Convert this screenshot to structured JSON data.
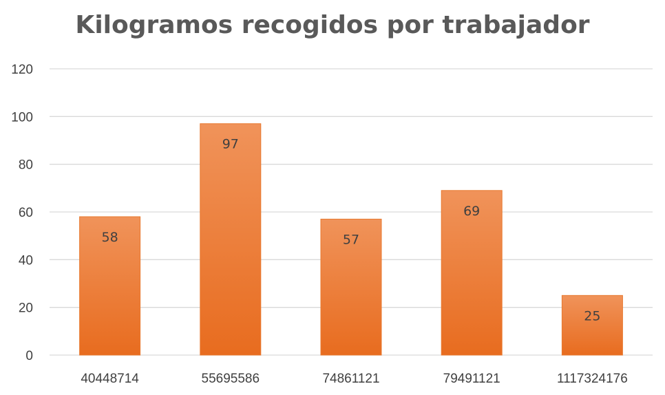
{
  "chart_data": {
    "type": "bar",
    "title": "Kilogramos recogidos por trabajador",
    "xlabel": "",
    "ylabel": "",
    "categories": [
      "40448714",
      "55695586",
      "74861121",
      "79491121",
      "1117324176"
    ],
    "values": [
      58,
      97,
      57,
      69,
      25
    ],
    "ylim": [
      0,
      120
    ],
    "yticks": [
      0,
      20,
      40,
      60,
      80,
      100,
      120
    ],
    "grid": true,
    "legend": "none",
    "data_labels": true,
    "bar_color_top": "#F0935A",
    "bar_color_bottom": "#E86C1F",
    "gridline_color": "#D9D9D9",
    "label_color": "#404040",
    "title_color": "#595959"
  }
}
